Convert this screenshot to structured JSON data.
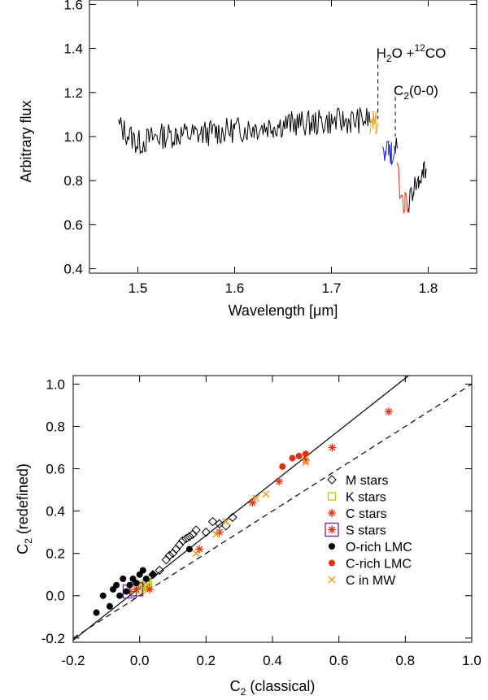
{
  "chart_data": [
    {
      "type": "line",
      "xlabel": "Wavelength [μm]",
      "ylabel": "Arbitrary flux",
      "xlim": [
        1.45,
        1.85
      ],
      "ylim": [
        0.38,
        1.62
      ],
      "xticks": [
        1.5,
        1.6,
        1.7,
        1.8
      ],
      "yticks": [
        0.4,
        0.6,
        0.8,
        1.0,
        1.2,
        1.4,
        1.6
      ],
      "grid": false,
      "annotations": [
        {
          "label": "H2O + 12CO",
          "x": 1.748,
          "y": 1.38
        },
        {
          "label": "C2(0-0)",
          "x": 1.766,
          "y": 1.21
        }
      ],
      "series": [
        {
          "color": "#000000",
          "x": [
            1.48,
            1.5,
            1.52,
            1.54,
            1.56,
            1.58,
            1.6,
            1.62,
            1.64,
            1.66,
            1.68,
            1.7,
            1.72,
            1.74
          ],
          "y": [
            1.05,
            0.97,
            1.0,
            1.01,
            1.01,
            1.02,
            1.03,
            1.04,
            1.05,
            1.06,
            1.06,
            1.07,
            1.07,
            1.08
          ]
        },
        {
          "color": "#e8a020",
          "x": [
            1.74,
            1.743,
            1.746,
            1.748
          ],
          "y": [
            1.07,
            1.09,
            1.06,
            1.1
          ]
        },
        {
          "color": "#1a1adc",
          "x": [
            1.753,
            1.756,
            1.759,
            1.762,
            1.765
          ],
          "y": [
            0.98,
            0.93,
            0.96,
            0.92,
            0.95
          ]
        },
        {
          "color": "#000000",
          "x": [
            1.765,
            1.768
          ],
          "y": [
            0.95,
            1.0
          ]
        },
        {
          "color": "#e03010",
          "x": [
            1.768,
            1.772,
            1.776,
            1.78
          ],
          "y": [
            0.84,
            0.72,
            0.7,
            0.7
          ]
        },
        {
          "color": "#000000",
          "x": [
            1.78,
            1.785,
            1.79,
            1.795,
            1.798
          ],
          "y": [
            0.7,
            0.78,
            0.8,
            0.85,
            0.83
          ]
        }
      ]
    },
    {
      "type": "scatter",
      "xlabel": "C2 (classical)",
      "ylabel": "C2 (redefined)",
      "xlim": [
        -0.2,
        1.0
      ],
      "ylim": [
        -0.22,
        1.04
      ],
      "xticks": [
        -0.2,
        0.0,
        0.2,
        0.4,
        0.6,
        0.8,
        1.0
      ],
      "yticks": [
        -0.2,
        0.0,
        0.2,
        0.4,
        0.6,
        0.8,
        1.0
      ],
      "grid": false,
      "legend_position": "right",
      "lines": [
        {
          "style": "solid",
          "x": [
            -0.2,
            0.81
          ],
          "y": [
            -0.21,
            1.04
          ]
        },
        {
          "style": "dashed",
          "x": [
            -0.2,
            1.0
          ],
          "y": [
            -0.2,
            1.0
          ]
        }
      ],
      "series": [
        {
          "name": "M stars",
          "marker": "diamond",
          "color": "#000000",
          "x": [
            0.02,
            0.04,
            0.06,
            0.08,
            0.09,
            0.1,
            0.11,
            0.12,
            0.13,
            0.14,
            0.15,
            0.16,
            0.17,
            0.2,
            0.22,
            0.24,
            0.26,
            0.28
          ],
          "y": [
            0.06,
            0.1,
            0.12,
            0.17,
            0.19,
            0.2,
            0.22,
            0.24,
            0.26,
            0.27,
            0.28,
            0.29,
            0.31,
            0.3,
            0.35,
            0.34,
            0.33,
            0.37
          ]
        },
        {
          "name": "K stars",
          "marker": "square",
          "color": "#c8c000",
          "x": [
            0.005,
            0.01,
            0.015,
            0.02,
            0.025
          ],
          "y": [
            0.03,
            0.05,
            0.04,
            0.06,
            0.05
          ]
        },
        {
          "name": "C stars",
          "marker": "asterisk",
          "color": "#e03010",
          "x": [
            0.03,
            0.18,
            0.24,
            0.34,
            0.42,
            0.5,
            0.58,
            0.75
          ],
          "y": [
            0.03,
            0.22,
            0.3,
            0.44,
            0.54,
            0.64,
            0.7,
            0.87
          ]
        },
        {
          "name": "S stars",
          "marker": "boxed-asterisk",
          "color": "#7a1a9a",
          "x": [
            -0.03,
            -0.01
          ],
          "y": [
            0.02,
            0.03
          ]
        },
        {
          "name": "O-rich LMC",
          "marker": "circle",
          "color": "#000000",
          "x": [
            -0.13,
            -0.11,
            -0.09,
            -0.08,
            -0.07,
            -0.06,
            -0.05,
            -0.04,
            -0.03,
            -0.02,
            -0.01,
            0.0,
            0.01,
            0.02,
            0.04,
            0.15
          ],
          "y": [
            -0.08,
            0.0,
            -0.05,
            0.03,
            0.05,
            0.0,
            0.08,
            0.02,
            0.05,
            0.08,
            0.06,
            0.1,
            0.12,
            0.08,
            0.1,
            0.22
          ]
        },
        {
          "name": "C-rich LMC",
          "marker": "filled-circle",
          "color": "#e03010",
          "x": [
            0.43,
            0.46,
            0.48,
            0.5
          ],
          "y": [
            0.61,
            0.65,
            0.66,
            0.67
          ]
        },
        {
          "name": "C in MW",
          "marker": "x",
          "color": "#e8a020",
          "x": [
            0.17,
            0.23,
            0.26,
            0.35,
            0.38,
            0.5
          ],
          "y": [
            0.2,
            0.29,
            0.35,
            0.46,
            0.48,
            0.63
          ]
        }
      ]
    }
  ]
}
